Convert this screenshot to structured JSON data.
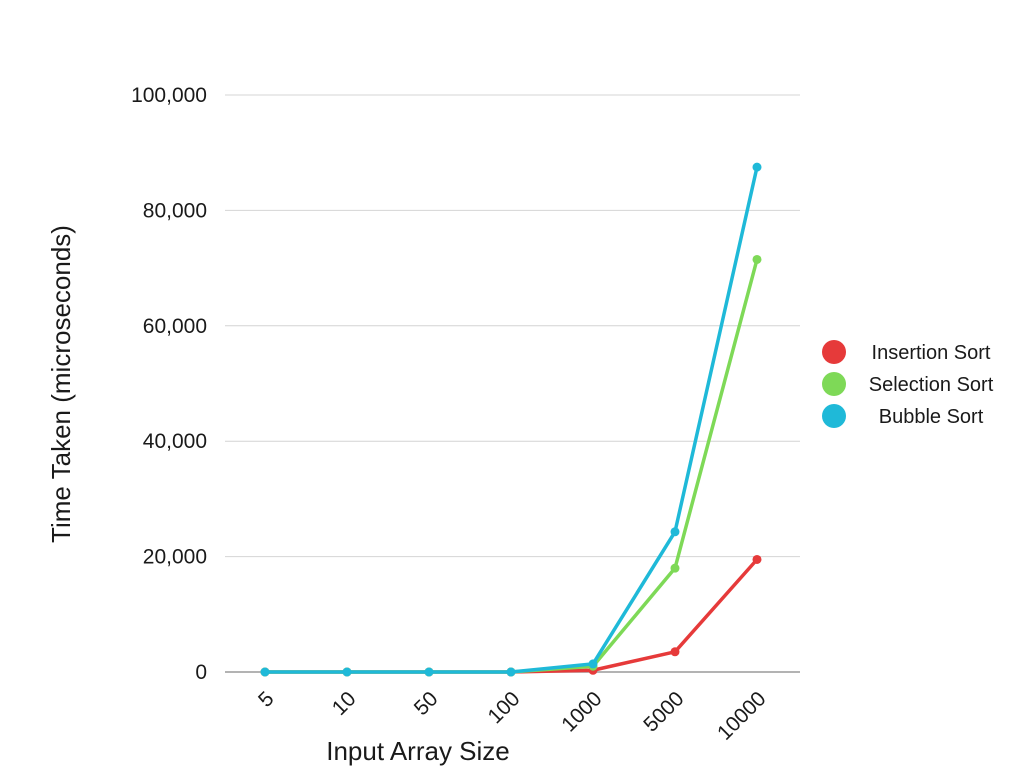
{
  "chart_data": {
    "type": "line",
    "title": "",
    "xlabel": "Input Array Size",
    "ylabel": "Time Taken (microseconds)",
    "categories": [
      "5",
      "10",
      "50",
      "100",
      "1000",
      "5000",
      "10000"
    ],
    "ylim": [
      0,
      100000
    ],
    "yticks": [
      0,
      20000,
      40000,
      60000,
      80000,
      100000
    ],
    "ytick_labels": [
      "0",
      "20,000",
      "40,000",
      "60,000",
      "80,000",
      "100,000"
    ],
    "grid": "horizontal",
    "legend_position": "right",
    "series": [
      {
        "name": "Insertion Sort",
        "color": "#e63a3a",
        "values": [
          0,
          0,
          0,
          0,
          300,
          3500,
          19500
        ]
      },
      {
        "name": "Selection Sort",
        "color": "#7ed957",
        "values": [
          0,
          0,
          0,
          0,
          1000,
          18000,
          71500
        ]
      },
      {
        "name": "Bubble Sort",
        "color": "#1fb9d8",
        "values": [
          0,
          0,
          0,
          0,
          1400,
          24300,
          87500
        ]
      }
    ]
  }
}
